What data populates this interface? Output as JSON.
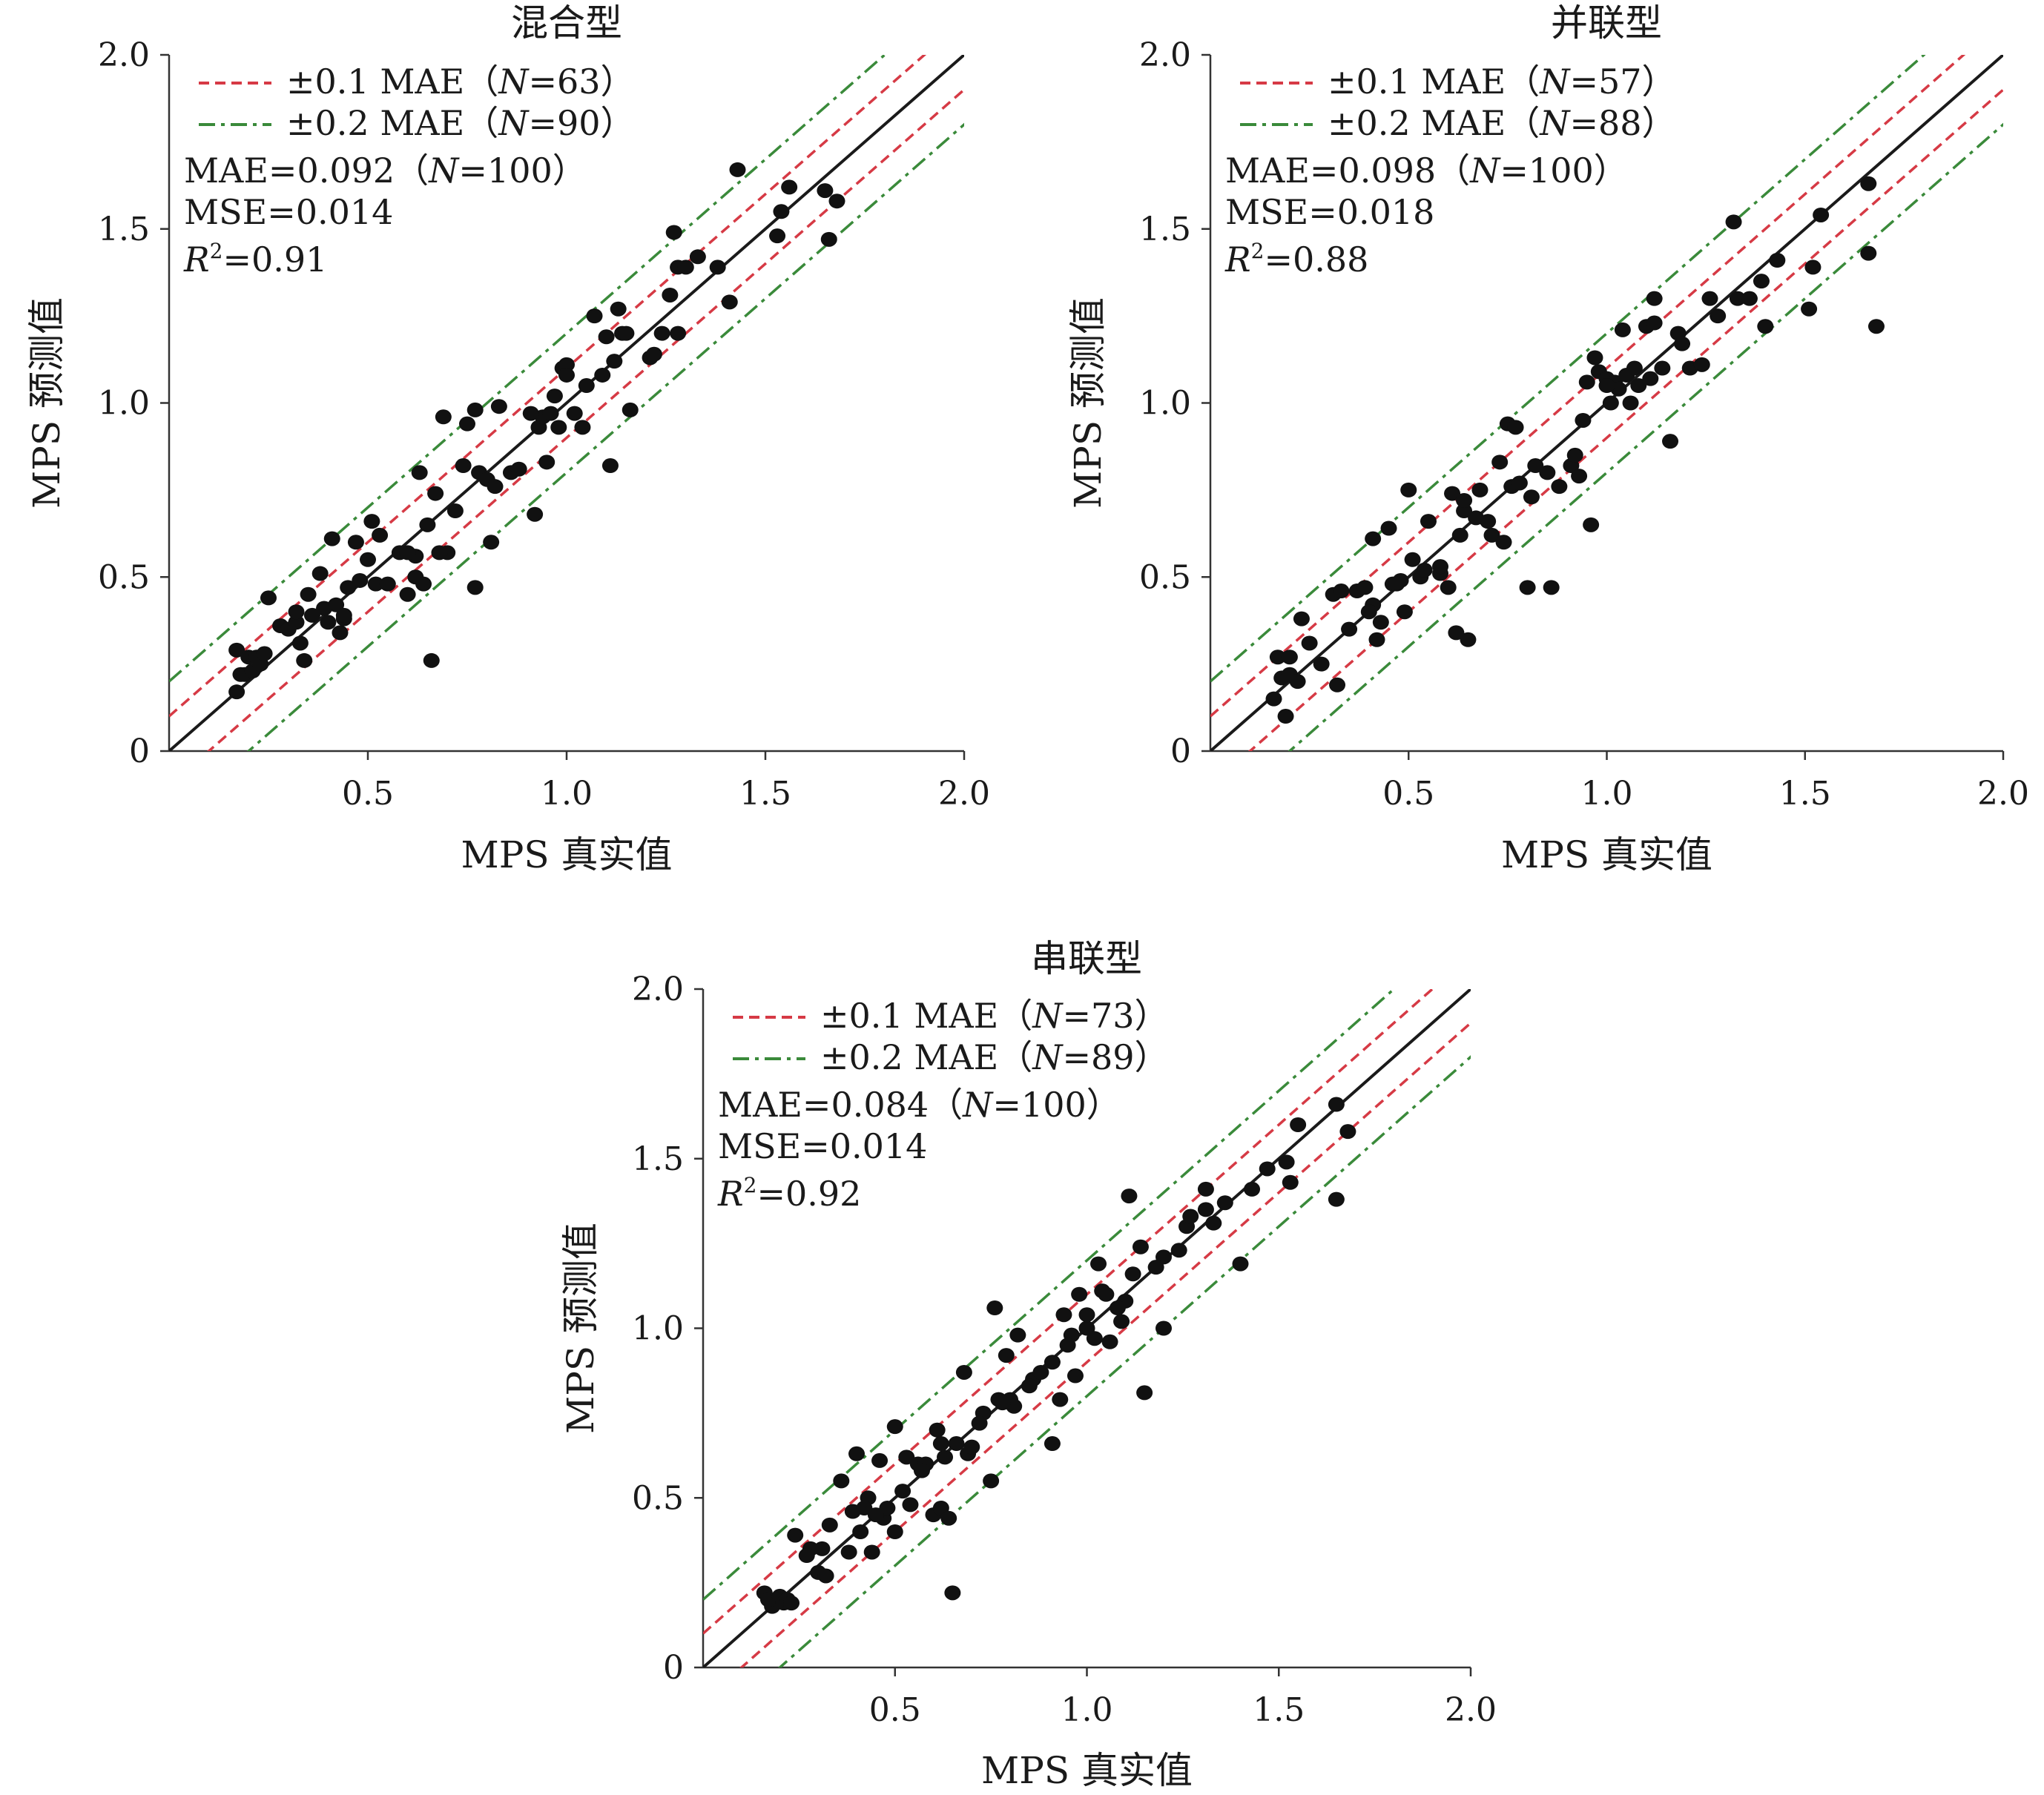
{
  "legend_labels": {
    "pm01_prefix": "±0.1 MAE（",
    "pm02_prefix": "±0.2 MAE（",
    "n_italic": "N",
    "suffix": "）"
  },
  "stat_labels": {
    "mae_prefix": "MAE=",
    "mse_prefix": "MSE=",
    "r2_var": "R",
    "r2_sup": "2",
    "r2_eq": "="
  },
  "colors": {
    "identity": "#1a1a1a",
    "pm01": "#d63a45",
    "pm02": "#3a8a3a",
    "points": "#111111"
  },
  "chart_data": [
    {
      "type": "scatter",
      "title": "混合型",
      "xlabel": "MPS 真实值",
      "ylabel": "MPS 预测值",
      "xlim": [
        0,
        2.0
      ],
      "ylim": [
        0,
        2.0
      ],
      "xticks": [
        "0.5",
        "1.0",
        "1.5",
        "2.0"
      ],
      "yticks": [
        "0",
        "0.5",
        "1.0",
        "1.5",
        "2.0"
      ],
      "legend": [
        {
          "label": "±0.1 MAE（N=63）",
          "n": "63",
          "style": "dashed"
        },
        {
          "label": "±0.2 MAE（N=90）",
          "n": "90",
          "style": "dash-dot"
        }
      ],
      "stats": {
        "mae": "0.092",
        "mae_n": "100",
        "mse": "0.014",
        "r2": "0.91"
      },
      "points": [
        [
          0.17,
          0.29
        ],
        [
          0.17,
          0.17
        ],
        [
          0.18,
          0.22
        ],
        [
          0.19,
          0.22
        ],
        [
          0.2,
          0.27
        ],
        [
          0.21,
          0.23
        ],
        [
          0.22,
          0.27
        ],
        [
          0.23,
          0.25
        ],
        [
          0.24,
          0.28
        ],
        [
          0.25,
          0.44
        ],
        [
          0.28,
          0.36
        ],
        [
          0.3,
          0.35
        ],
        [
          0.32,
          0.37
        ],
        [
          0.32,
          0.4
        ],
        [
          0.33,
          0.31
        ],
        [
          0.34,
          0.26
        ],
        [
          0.35,
          0.45
        ],
        [
          0.38,
          0.51
        ],
        [
          0.39,
          0.41
        ],
        [
          0.4,
          0.37
        ],
        [
          0.41,
          0.61
        ],
        [
          0.42,
          0.42
        ],
        [
          0.43,
          0.34
        ],
        [
          0.44,
          0.38
        ],
        [
          0.45,
          0.47
        ],
        [
          0.47,
          0.6
        ],
        [
          0.48,
          0.49
        ],
        [
          0.5,
          0.55
        ],
        [
          0.51,
          0.66
        ],
        [
          0.52,
          0.48
        ],
        [
          0.53,
          0.62
        ],
        [
          0.55,
          0.48
        ],
        [
          0.58,
          0.57
        ],
        [
          0.6,
          0.45
        ],
        [
          0.62,
          0.56
        ],
        [
          0.62,
          0.5
        ],
        [
          0.63,
          0.8
        ],
        [
          0.64,
          0.48
        ],
        [
          0.65,
          0.65
        ],
        [
          0.66,
          0.26
        ],
        [
          0.67,
          0.74
        ],
        [
          0.69,
          0.96
        ],
        [
          0.7,
          0.57
        ],
        [
          0.72,
          0.69
        ],
        [
          0.75,
          0.94
        ],
        [
          0.77,
          0.98
        ],
        [
          0.77,
          0.47
        ],
        [
          0.78,
          0.8
        ],
        [
          0.8,
          0.78
        ],
        [
          0.81,
          0.6
        ],
        [
          0.82,
          0.76
        ],
        [
          0.83,
          0.99
        ],
        [
          0.86,
          0.8
        ],
        [
          0.88,
          0.81
        ],
        [
          0.92,
          0.68
        ],
        [
          0.93,
          0.93
        ],
        [
          0.94,
          0.96
        ],
        [
          0.95,
          0.83
        ],
        [
          0.96,
          0.97
        ],
        [
          0.97,
          1.02
        ],
        [
          0.98,
          0.93
        ],
        [
          0.99,
          1.1
        ],
        [
          1.0,
          1.11
        ],
        [
          1.02,
          0.97
        ],
        [
          1.04,
          0.93
        ],
        [
          1.05,
          1.05
        ],
        [
          1.07,
          1.25
        ],
        [
          1.1,
          1.19
        ],
        [
          1.11,
          0.82
        ],
        [
          1.12,
          1.12
        ],
        [
          1.13,
          1.27
        ],
        [
          1.14,
          1.2
        ],
        [
          1.15,
          1.2
        ],
        [
          1.16,
          0.98
        ],
        [
          1.21,
          1.13
        ],
        [
          1.22,
          1.14
        ],
        [
          1.26,
          1.31
        ],
        [
          1.27,
          1.49
        ],
        [
          1.28,
          1.39
        ],
        [
          1.28,
          1.2
        ],
        [
          1.3,
          1.39
        ],
        [
          1.33,
          1.42
        ],
        [
          1.38,
          1.39
        ],
        [
          1.41,
          1.29
        ],
        [
          1.43,
          1.67
        ],
        [
          1.53,
          1.48
        ],
        [
          1.54,
          1.55
        ],
        [
          1.56,
          1.62
        ],
        [
          1.65,
          1.61
        ],
        [
          1.66,
          1.47
        ],
        [
          1.68,
          1.58
        ],
        [
          0.36,
          0.39
        ],
        [
          0.44,
          0.39
        ],
        [
          0.6,
          0.57
        ],
        [
          0.68,
          0.57
        ],
        [
          0.74,
          0.82
        ],
        [
          0.91,
          0.97
        ],
        [
          1.0,
          1.08
        ],
        [
          1.09,
          1.08
        ],
        [
          1.24,
          1.2
        ]
      ]
    },
    {
      "type": "scatter",
      "title": "并联型",
      "xlabel": "MPS 真实值",
      "ylabel": "MPS 预测值",
      "xlim": [
        0,
        2.0
      ],
      "ylim": [
        0,
        2.0
      ],
      "xticks": [
        "0.5",
        "1.0",
        "1.5",
        "2.0"
      ],
      "yticks": [
        "0",
        "0.5",
        "1.0",
        "1.5",
        "2.0"
      ],
      "legend": [
        {
          "label": "±0.1 MAE（N=57）",
          "n": "57",
          "style": "dashed"
        },
        {
          "label": "±0.2 MAE（N=88）",
          "n": "88",
          "style": "dash-dot"
        }
      ],
      "stats": {
        "mae": "0.098",
        "mae_n": "100",
        "mse": "0.018",
        "r2": "0.88"
      },
      "points": [
        [
          0.16,
          0.15
        ],
        [
          0.17,
          0.27
        ],
        [
          0.18,
          0.21
        ],
        [
          0.19,
          0.1
        ],
        [
          0.2,
          0.27
        ],
        [
          0.2,
          0.22
        ],
        [
          0.22,
          0.2
        ],
        [
          0.23,
          0.38
        ],
        [
          0.25,
          0.31
        ],
        [
          0.28,
          0.25
        ],
        [
          0.31,
          0.45
        ],
        [
          0.32,
          0.19
        ],
        [
          0.33,
          0.46
        ],
        [
          0.35,
          0.35
        ],
        [
          0.37,
          0.46
        ],
        [
          0.39,
          0.47
        ],
        [
          0.41,
          0.42
        ],
        [
          0.41,
          0.61
        ],
        [
          0.42,
          0.32
        ],
        [
          0.43,
          0.37
        ],
        [
          0.45,
          0.64
        ],
        [
          0.46,
          0.48
        ],
        [
          0.48,
          0.49
        ],
        [
          0.49,
          0.4
        ],
        [
          0.5,
          0.75
        ],
        [
          0.51,
          0.55
        ],
        [
          0.53,
          0.5
        ],
        [
          0.54,
          0.52
        ],
        [
          0.55,
          0.66
        ],
        [
          0.58,
          0.51
        ],
        [
          0.6,
          0.47
        ],
        [
          0.61,
          0.74
        ],
        [
          0.62,
          0.34
        ],
        [
          0.63,
          0.62
        ],
        [
          0.64,
          0.69
        ],
        [
          0.65,
          0.32
        ],
        [
          0.67,
          0.67
        ],
        [
          0.68,
          0.75
        ],
        [
          0.7,
          0.66
        ],
        [
          0.71,
          0.62
        ],
        [
          0.73,
          0.83
        ],
        [
          0.74,
          0.6
        ],
        [
          0.75,
          0.94
        ],
        [
          0.76,
          0.76
        ],
        [
          0.78,
          0.77
        ],
        [
          0.8,
          0.47
        ],
        [
          0.81,
          0.73
        ],
        [
          0.82,
          0.82
        ],
        [
          0.86,
          0.47
        ],
        [
          0.88,
          0.76
        ],
        [
          0.91,
          0.82
        ],
        [
          0.92,
          0.85
        ],
        [
          0.93,
          0.79
        ],
        [
          0.95,
          1.06
        ],
        [
          0.96,
          0.65
        ],
        [
          0.97,
          1.13
        ],
        [
          0.98,
          1.09
        ],
        [
          1.0,
          1.07
        ],
        [
          1.01,
          1.0
        ],
        [
          1.02,
          1.06
        ],
        [
          1.03,
          1.04
        ],
        [
          1.04,
          1.21
        ],
        [
          1.05,
          1.08
        ],
        [
          1.06,
          1.0
        ],
        [
          1.07,
          1.1
        ],
        [
          1.08,
          1.05
        ],
        [
          1.1,
          1.22
        ],
        [
          1.11,
          1.07
        ],
        [
          1.12,
          1.3
        ],
        [
          1.14,
          1.1
        ],
        [
          1.16,
          0.89
        ],
        [
          1.18,
          1.2
        ],
        [
          1.21,
          1.1
        ],
        [
          1.24,
          1.11
        ],
        [
          1.26,
          1.3
        ],
        [
          1.28,
          1.25
        ],
        [
          1.32,
          1.52
        ],
        [
          1.33,
          1.3
        ],
        [
          1.36,
          1.3
        ],
        [
          1.4,
          1.22
        ],
        [
          1.43,
          1.41
        ],
        [
          1.51,
          1.27
        ],
        [
          1.52,
          1.39
        ],
        [
          1.54,
          1.54
        ],
        [
          1.66,
          1.63
        ],
        [
          1.66,
          1.43
        ],
        [
          1.68,
          1.22
        ],
        [
          0.4,
          0.4
        ],
        [
          0.47,
          0.48
        ],
        [
          0.58,
          0.53
        ],
        [
          0.64,
          0.72
        ],
        [
          0.77,
          0.93
        ],
        [
          0.85,
          0.8
        ],
        [
          0.94,
          0.95
        ],
        [
          1.0,
          1.05
        ],
        [
          1.12,
          1.23
        ],
        [
          1.19,
          1.17
        ],
        [
          1.39,
          1.35
        ]
      ]
    },
    {
      "type": "scatter",
      "title": "串联型",
      "xlabel": "MPS 真实值",
      "ylabel": "MPS 预测值",
      "xlim": [
        0,
        2.0
      ],
      "ylim": [
        0,
        2.0
      ],
      "xticks": [
        "0.5",
        "1.0",
        "1.5",
        "2.0"
      ],
      "yticks": [
        "0",
        "0.5",
        "1.0",
        "1.5",
        "2.0"
      ],
      "legend": [
        {
          "label": "±0.1 MAE（N=73）",
          "n": "73",
          "style": "dashed"
        },
        {
          "label": "±0.2 MAE（N=89）",
          "n": "89",
          "style": "dash-dot"
        }
      ],
      "stats": {
        "mae": "0.084",
        "mae_n": "100",
        "mse": "0.014",
        "r2": "0.92"
      },
      "points": [
        [
          0.16,
          0.22
        ],
        [
          0.17,
          0.2
        ],
        [
          0.18,
          0.18
        ],
        [
          0.19,
          0.2
        ],
        [
          0.2,
          0.21
        ],
        [
          0.21,
          0.19
        ],
        [
          0.22,
          0.2
        ],
        [
          0.23,
          0.19
        ],
        [
          0.24,
          0.39
        ],
        [
          0.28,
          0.35
        ],
        [
          0.3,
          0.28
        ],
        [
          0.31,
          0.35
        ],
        [
          0.32,
          0.27
        ],
        [
          0.33,
          0.42
        ],
        [
          0.36,
          0.55
        ],
        [
          0.38,
          0.34
        ],
        [
          0.39,
          0.46
        ],
        [
          0.4,
          0.63
        ],
        [
          0.41,
          0.4
        ],
        [
          0.43,
          0.5
        ],
        [
          0.44,
          0.34
        ],
        [
          0.46,
          0.61
        ],
        [
          0.47,
          0.44
        ],
        [
          0.48,
          0.47
        ],
        [
          0.5,
          0.71
        ],
        [
          0.5,
          0.4
        ],
        [
          0.52,
          0.52
        ],
        [
          0.53,
          0.62
        ],
        [
          0.54,
          0.48
        ],
        [
          0.56,
          0.6
        ],
        [
          0.58,
          0.6
        ],
        [
          0.6,
          0.45
        ],
        [
          0.61,
          0.7
        ],
        [
          0.62,
          0.47
        ],
        [
          0.63,
          0.62
        ],
        [
          0.64,
          0.44
        ],
        [
          0.65,
          0.22
        ],
        [
          0.66,
          0.66
        ],
        [
          0.68,
          0.87
        ],
        [
          0.69,
          0.63
        ],
        [
          0.7,
          0.65
        ],
        [
          0.73,
          0.75
        ],
        [
          0.75,
          0.55
        ],
        [
          0.76,
          1.06
        ],
        [
          0.77,
          0.79
        ],
        [
          0.79,
          0.92
        ],
        [
          0.8,
          0.79
        ],
        [
          0.81,
          0.77
        ],
        [
          0.82,
          0.98
        ],
        [
          0.86,
          0.85
        ],
        [
          0.88,
          0.87
        ],
        [
          0.91,
          0.9
        ],
        [
          0.91,
          0.66
        ],
        [
          0.93,
          0.79
        ],
        [
          0.94,
          1.04
        ],
        [
          0.96,
          0.98
        ],
        [
          0.97,
          0.86
        ],
        [
          0.98,
          1.1
        ],
        [
          1.0,
          1.0
        ],
        [
          1.02,
          0.97
        ],
        [
          1.03,
          1.19
        ],
        [
          1.04,
          1.11
        ],
        [
          1.05,
          1.1
        ],
        [
          1.06,
          0.96
        ],
        [
          1.09,
          1.02
        ],
        [
          1.1,
          1.08
        ],
        [
          1.11,
          1.39
        ],
        [
          1.12,
          1.16
        ],
        [
          1.14,
          1.24
        ],
        [
          1.15,
          0.81
        ],
        [
          1.2,
          1.0
        ],
        [
          1.2,
          1.21
        ],
        [
          1.24,
          1.23
        ],
        [
          1.26,
          1.3
        ],
        [
          1.27,
          1.33
        ],
        [
          1.31,
          1.35
        ],
        [
          1.31,
          1.41
        ],
        [
          1.36,
          1.37
        ],
        [
          1.4,
          1.19
        ],
        [
          1.43,
          1.41
        ],
        [
          1.52,
          1.49
        ],
        [
          1.53,
          1.43
        ],
        [
          1.55,
          1.6
        ],
        [
          1.65,
          1.66
        ],
        [
          1.65,
          1.38
        ],
        [
          1.68,
          1.58
        ],
        [
          0.27,
          0.33
        ],
        [
          0.45,
          0.45
        ],
        [
          0.57,
          0.58
        ],
        [
          0.72,
          0.72
        ],
        [
          0.85,
          0.83
        ],
        [
          0.95,
          0.95
        ],
        [
          1.08,
          1.06
        ],
        [
          1.18,
          1.18
        ],
        [
          1.33,
          1.31
        ],
        [
          1.47,
          1.47
        ],
        [
          0.42,
          0.47
        ],
        [
          0.62,
          0.66
        ],
        [
          0.78,
          0.78
        ],
        [
          1.0,
          1.04
        ]
      ]
    }
  ]
}
